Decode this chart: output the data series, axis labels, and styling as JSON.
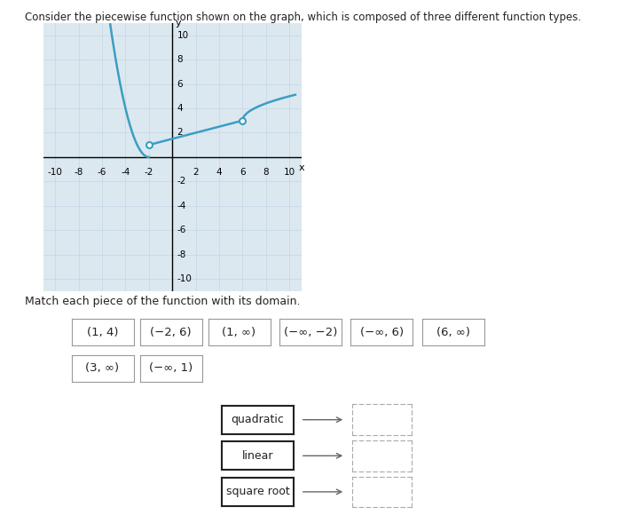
{
  "title": "Consider the piecewise function shown on the graph, which is composed of three different function types.",
  "graph_xlim": [
    -11,
    11
  ],
  "graph_ylim": [
    -11,
    11
  ],
  "graph_xticks": [
    -10,
    -8,
    -6,
    -4,
    -2,
    2,
    4,
    6,
    8,
    10
  ],
  "graph_yticks": [
    -10,
    -8,
    -6,
    -4,
    -2,
    2,
    4,
    6,
    8,
    10
  ],
  "curve_color": "#3a9ec2",
  "curve_linewidth": 1.8,
  "background_color": "#ffffff",
  "grid_color": "#c8d8e8",
  "grid_bg": "#dce8f0",
  "match_instruction": "Match each piece of the function with its domain.",
  "domain_options_row1": [
    "(1, 4)",
    "(−2, 6)",
    "(1, ∞)",
    "(−∞, −2)",
    "(−∞, 6)",
    "(6, ∞)"
  ],
  "domain_options_row2": [
    "(3, ∞)",
    "(−∞, 1)"
  ],
  "function_labels": [
    "quadratic",
    "linear",
    "square root"
  ],
  "arrow_color": "#666666",
  "open_circle_color": "#3a9ec2",
  "open_circle_fill": "#ffffff",
  "font_size_title": 8.5,
  "font_size_ticks": 7.5,
  "font_size_boxes": 9.5,
  "font_size_func": 9.0
}
